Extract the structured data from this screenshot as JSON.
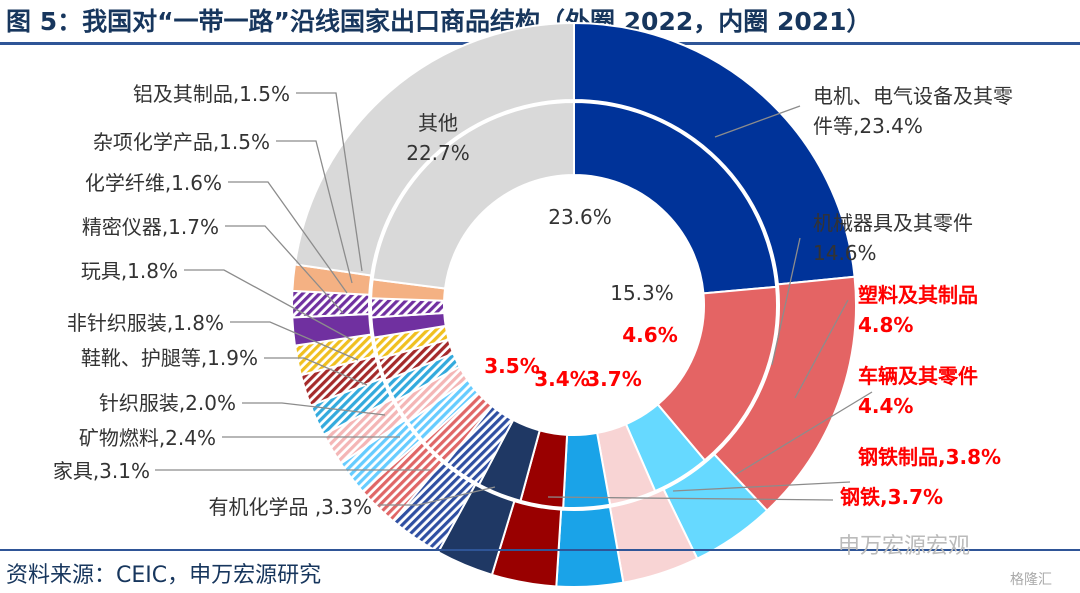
{
  "figure": {
    "title": "图 5：我国对“一带一路”沿线国家出口商品结构（外圈 2022，内圈 2021）",
    "source": "资料来源：CEIC，申万宏源研究",
    "watermark": "申万宏源宏观",
    "logo_text": "格隆汇"
  },
  "chart_data": {
    "type": "pie",
    "subtype": "double-ring-donut",
    "title": "图 5：我国对“一带一路”沿线国家出口商品结构（外圈 2022，内圈 2021）",
    "rings": [
      {
        "name": "外圈 2022",
        "ring": "outer"
      },
      {
        "name": "内圈 2021",
        "ring": "inner"
      }
    ],
    "slices": [
      {
        "name": "电机、电气设备及其零件等",
        "outer": 23.4,
        "inner": 23.6,
        "color": "#003399",
        "pattern": "solid",
        "label_lines": [
          "电机、电气设备及其零",
          "件等,23.4%"
        ],
        "label_color": "#333333",
        "label_bold": false
      },
      {
        "name": "机械器具及其零件",
        "outer": 14.6,
        "inner": 15.3,
        "color": "#e46464",
        "pattern": "solid",
        "label_lines": [
          "机械器具及其零件",
          "14.6%"
        ],
        "label_color": "#333333",
        "label_bold": false
      },
      {
        "name": "塑料及其制品",
        "outer": 4.8,
        "inner": 4.6,
        "color": "#66d9ff",
        "pattern": "solid",
        "label_lines": [
          "塑料及其制品",
          "4.8%"
        ],
        "label_color": "#ff0000",
        "label_bold": true
      },
      {
        "name": "车辆及其零件",
        "outer": 4.4,
        "inner": 3.7,
        "color": "#f8d4d4",
        "pattern": "solid",
        "label_lines": [
          "车辆及其零件",
          "4.4%"
        ],
        "label_color": "#ff0000",
        "label_bold": true
      },
      {
        "name": "钢铁制品",
        "outer": 3.8,
        "inner": 3.7,
        "color": "#1aa3e8",
        "pattern": "solid",
        "label_lines": [
          "钢铁制品,3.8%"
        ],
        "label_color": "#ff0000",
        "label_bold": true
      },
      {
        "name": "钢铁",
        "outer": 3.7,
        "inner": 3.4,
        "color": "#990000",
        "pattern": "solid",
        "label_lines": [
          "钢铁,3.7%"
        ],
        "label_color": "#ff0000",
        "label_bold": true
      },
      {
        "name": "有机化学品",
        "outer": 3.3,
        "inner": 3.5,
        "color": "#1f3864",
        "pattern": "solid",
        "label_lines": [
          "有机化学品 ,3.3%"
        ],
        "label_color": "#333333",
        "label_bold": false
      },
      {
        "name": "家具",
        "outer": 3.1,
        "inner": 3.1,
        "color": "#2f4fa2",
        "pattern": "diagonal",
        "label_lines": [
          "家具,3.1%"
        ],
        "label_color": "#333333",
        "label_bold": false
      },
      {
        "name": "矿物燃料",
        "outer": 2.4,
        "inner": 2.4,
        "color": "#e06666",
        "pattern": "diagonal",
        "label_lines": [
          "矿物燃料,2.4%"
        ],
        "label_color": "#333333",
        "label_bold": false
      },
      {
        "name": "针织服装",
        "outer": 2.0,
        "inner": 2.0,
        "color": "#66ccff",
        "pattern": "diagonal",
        "label_lines": [
          "针织服装,2.0%"
        ],
        "label_color": "#333333",
        "label_bold": false
      },
      {
        "name": "鞋靴、护腿等",
        "outer": 1.9,
        "inner": 1.9,
        "color": "#f4b6b6",
        "pattern": "diagonal",
        "label_lines": [
          "鞋靴、护腿等,1.9%"
        ],
        "label_color": "#333333",
        "label_bold": false
      },
      {
        "name": "非针织服装",
        "outer": 1.8,
        "inner": 1.8,
        "color": "#33aadd",
        "pattern": "diagonal",
        "label_lines": [
          "非针织服装,1.8%"
        ],
        "label_color": "#333333",
        "label_bold": false
      },
      {
        "name": "玩具",
        "outer": 1.8,
        "inner": 1.8,
        "color": "#a52a2a",
        "pattern": "diagonal",
        "label_lines": [
          "玩具,1.8%"
        ],
        "label_color": "#333333",
        "label_bold": false
      },
      {
        "name": "精密仪器",
        "outer": 1.7,
        "inner": 1.7,
        "color": "#f0c020",
        "pattern": "diagonal",
        "label_lines": [
          "精密仪器,1.7%"
        ],
        "label_color": "#333333",
        "label_bold": false
      },
      {
        "name": "化学纤维",
        "outer": 1.6,
        "inner": 1.6,
        "color": "#7030a0",
        "pattern": "solid",
        "label_lines": [
          "化学纤维,1.6%"
        ],
        "label_color": "#333333",
        "label_bold": false
      },
      {
        "name": "杂项化学产品",
        "outer": 1.5,
        "inner": 1.5,
        "color": "#7030a0",
        "pattern": "diagonal",
        "label_lines": [
          "杂项化学产品,1.5%"
        ],
        "label_color": "#333333",
        "label_bold": false
      },
      {
        "name": "铝及其制品",
        "outer": 1.5,
        "inner": 1.5,
        "color": "#f4b183",
        "pattern": "solid",
        "label_lines": [
          "铝及其制品,1.5%"
        ],
        "label_color": "#333333",
        "label_bold": false
      },
      {
        "name": "其他",
        "outer": 22.7,
        "inner": 23.0,
        "color": "#d9d9d9",
        "pattern": "solid",
        "label_lines": [
          "其他",
          "22.7%"
        ],
        "label_color": "#333333",
        "label_bold": false
      }
    ],
    "inner_value_labels": [
      {
        "slice": "电机、电气设备及其零件等",
        "text": "23.6%",
        "color": "#333333",
        "bold": false
      },
      {
        "slice": "机械器具及其零件",
        "text": "15.3%",
        "color": "#333333",
        "bold": false
      },
      {
        "slice": "塑料及其制品",
        "text": "4.6%",
        "color": "#ff0000",
        "bold": true
      },
      {
        "slice": "车辆及其零件",
        "text": "3.7%",
        "color": "#ff0000",
        "bold": true
      },
      {
        "slice": "钢铁",
        "text": "3.4%",
        "color": "#ff0000",
        "bold": true
      },
      {
        "slice": "有机化学品",
        "text": "3.5%",
        "color": "#ff0000",
        "bold": true
      }
    ],
    "legend": "none"
  }
}
